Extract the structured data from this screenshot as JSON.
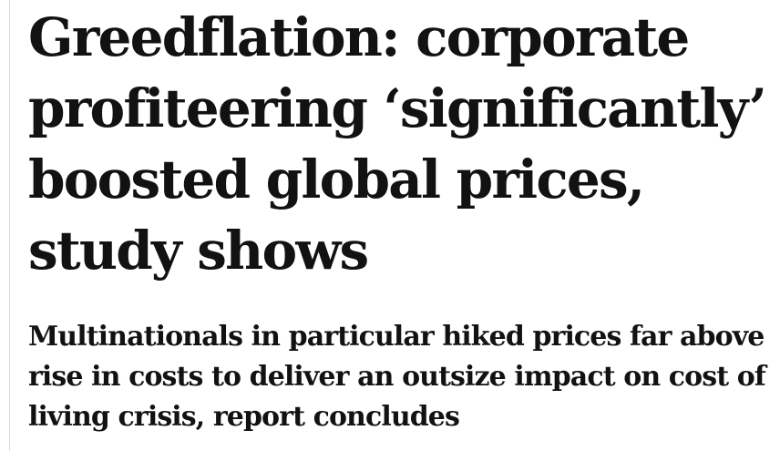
{
  "article": {
    "headline": "Greedflation: corporate profiteering ‘significantly’ boosted global prices, study shows",
    "standfirst": "Multinationals in particular hiked prices far above rise in costs to deliver an outsize impact on cost of living crisis, report concludes"
  }
}
